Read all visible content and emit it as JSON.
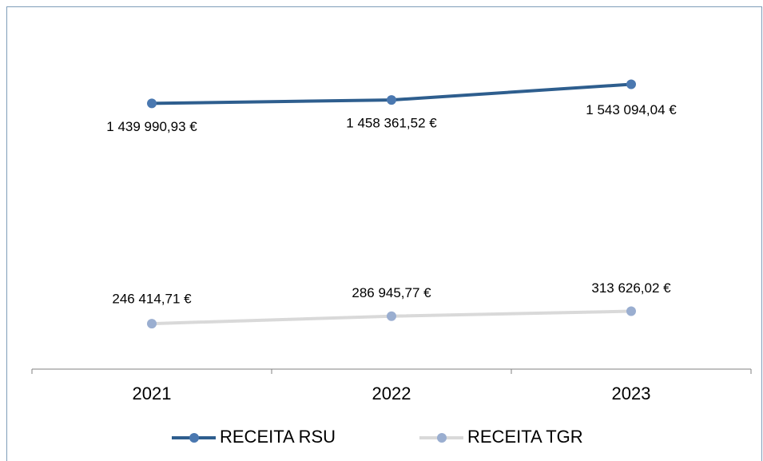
{
  "chart_data": {
    "type": "line",
    "categories": [
      "2021",
      "2022",
      "2023"
    ],
    "series": [
      {
        "name": "RECEITA RSU",
        "color": "#2e5e8e",
        "marker_color": "#4a78b0",
        "values": [
          1439990.93,
          1458361.52,
          1543094.04
        ],
        "value_labels": [
          "1 439 990,93 €",
          "1 458 361,52 €",
          "1 543 094,04 €"
        ],
        "label_position": "below"
      },
      {
        "name": "RECEITA TGR",
        "color": "#d9d9d9",
        "marker_color": "#9aaed0",
        "values": [
          246414.71,
          286945.77,
          313626.02
        ],
        "value_labels": [
          "246 414,71 €",
          "286 945,77 €",
          "313 626,02 €"
        ],
        "label_position": "above"
      }
    ],
    "ylim": [
      0,
      2000000
    ],
    "legend": "bottom"
  }
}
